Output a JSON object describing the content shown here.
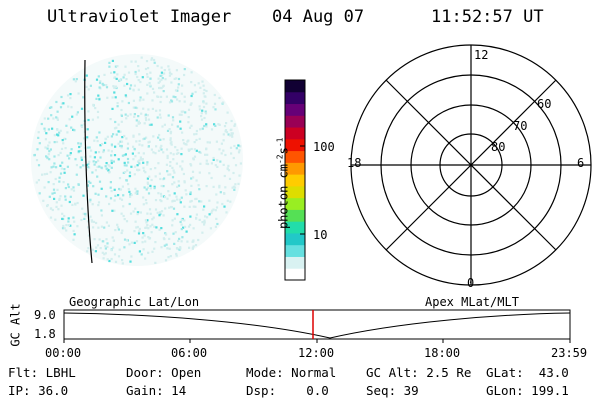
{
  "header": {
    "instrument": "Ultraviolet Imager",
    "date": "04 Aug 07",
    "time": "11:52:57 UT"
  },
  "colorbar": {
    "unit_label": "photon cm-2s-1",
    "unit_parts": {
      "base": "photon cm",
      "exp1": "-2",
      "mid": "s",
      "exp2": "-1"
    },
    "ticks": [
      "100",
      "10"
    ],
    "colors": [
      "#ffffff",
      "#d9f2f2",
      "#66e0e0",
      "#22c8c8",
      "#22ddaa",
      "#55e055",
      "#99ee22",
      "#dddd00",
      "#ffcc00",
      "#ff9900",
      "#ff5500",
      "#ee1100",
      "#cc0022",
      "#990055",
      "#660077",
      "#330066",
      "#110033"
    ]
  },
  "polar_plot": {
    "mlt_labels": {
      "top": "12",
      "right": "6",
      "bottom": "0",
      "left": "18"
    },
    "lat_labels": [
      "60",
      "70",
      "80"
    ]
  },
  "orbit_panel": {
    "left_title": "Geographic Lat/Lon",
    "right_title": "Apex MLat/MLT",
    "y_axis_label": "GC Alt",
    "y_ticks": [
      "9.0",
      "1.8"
    ],
    "x_ticks": [
      "00:00",
      "06:00",
      "12:00",
      "18:00",
      "23:59"
    ],
    "marker_color": "#dd0000"
  },
  "status": {
    "flt_label": "Flt:",
    "flt_value": "LBHL",
    "ip_label": "IP:",
    "ip_value": "36.0",
    "door_label": "Door:",
    "door_value": "Open",
    "gain_label": "Gain:",
    "gain_value": "14",
    "mode_label": "Mode:",
    "mode_value": "Normal",
    "dsp_label": "Dsp:",
    "dsp_value": "0.0",
    "gcalt_label": "GC Alt:",
    "gcalt_value": "2.5 Re",
    "seq_label": "Seq:",
    "seq_value": "39",
    "glat_label": "GLat:",
    "glat_value": "43.0",
    "glon_label": "GLon:",
    "glon_value": "199.1"
  }
}
